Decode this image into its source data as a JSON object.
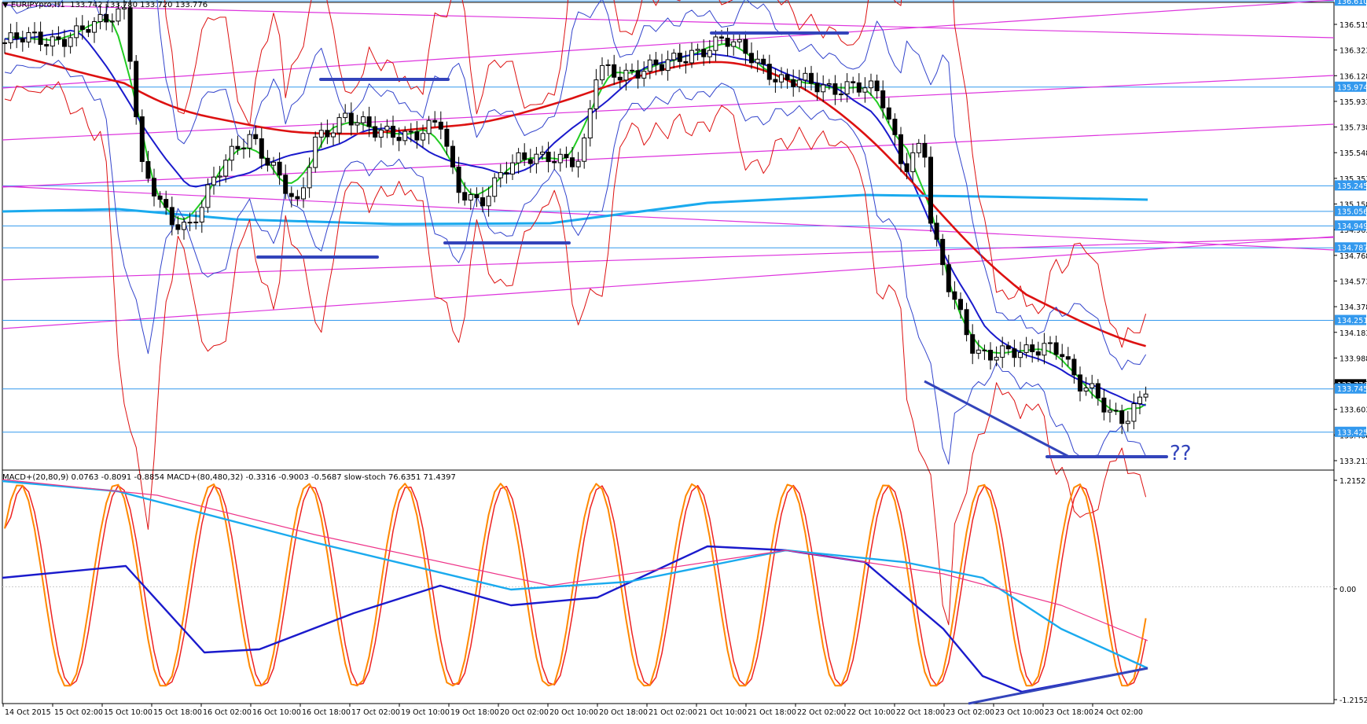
{
  "main_panel": {
    "symbol_label": "EURJPYpro,H1",
    "ohlc_label": "133.742 133.780 133.720 133.776",
    "annotation": "??"
  },
  "indicator_panel": {
    "label": "MACD+(20,80,9) 0.0763 -0.8091 -0.8854  MACD+(80,480,32) -0.3316 -0.9003 -0.5687  slow-stoch 76.6351 71.4397"
  },
  "price_axis": {
    "ticks": [
      "136.515",
      "136.323",
      "136.128",
      "135.933",
      "135.738",
      "135.548",
      "135.353",
      "135.158",
      "134.963",
      "134.768",
      "134.573",
      "134.378",
      "134.183",
      "133.988",
      "133.793",
      "133.603",
      "133.408",
      "133.213"
    ],
    "tags": [
      "136.610",
      "135.974",
      "135.245",
      "135.056",
      "134.949",
      "134.787",
      "134.251",
      "133.776",
      "133.745",
      "133.425"
    ]
  },
  "indicator_axis": {
    "ticks": [
      "1.2152",
      "0.00",
      "-1.2152"
    ]
  },
  "time_axis": {
    "labels": [
      "14 Oct 2015",
      "15 Oct 02:00",
      "15 Oct 10:00",
      "15 Oct 18:00",
      "16 Oct 02:00",
      "16 Oct 10:00",
      "16 Oct 18:00",
      "17 Oct 02:00",
      "19 Oct 10:00",
      "19 Oct 18:00",
      "20 Oct 02:00",
      "20 Oct 10:00",
      "20 Oct 18:00",
      "21 Oct 02:00",
      "21 Oct 10:00",
      "21 Oct 18:00",
      "22 Oct 02:00",
      "22 Oct 10:00",
      "22 Oct 18:00",
      "23 Oct 02:00",
      "23 Oct 10:00",
      "23 Oct 18:00",
      "24 Oct 02:00"
    ]
  },
  "colors": {
    "blue_ma": "#1a1acc",
    "green_ma": "#22cc22",
    "red_ma": "#dd1111",
    "cyan_ma": "#1aaaee",
    "bollinger": "#3344cc",
    "trend_line": "#dd33dd",
    "hline": "#3399ee",
    "support_mark": "#3344bb",
    "stoch_main": "#ff8800",
    "stoch_signal": "#ee2222",
    "macd_fast": "#1a1acc",
    "macd_slow": "#1aaaee",
    "macd_signal": "#ee3388"
  }
}
